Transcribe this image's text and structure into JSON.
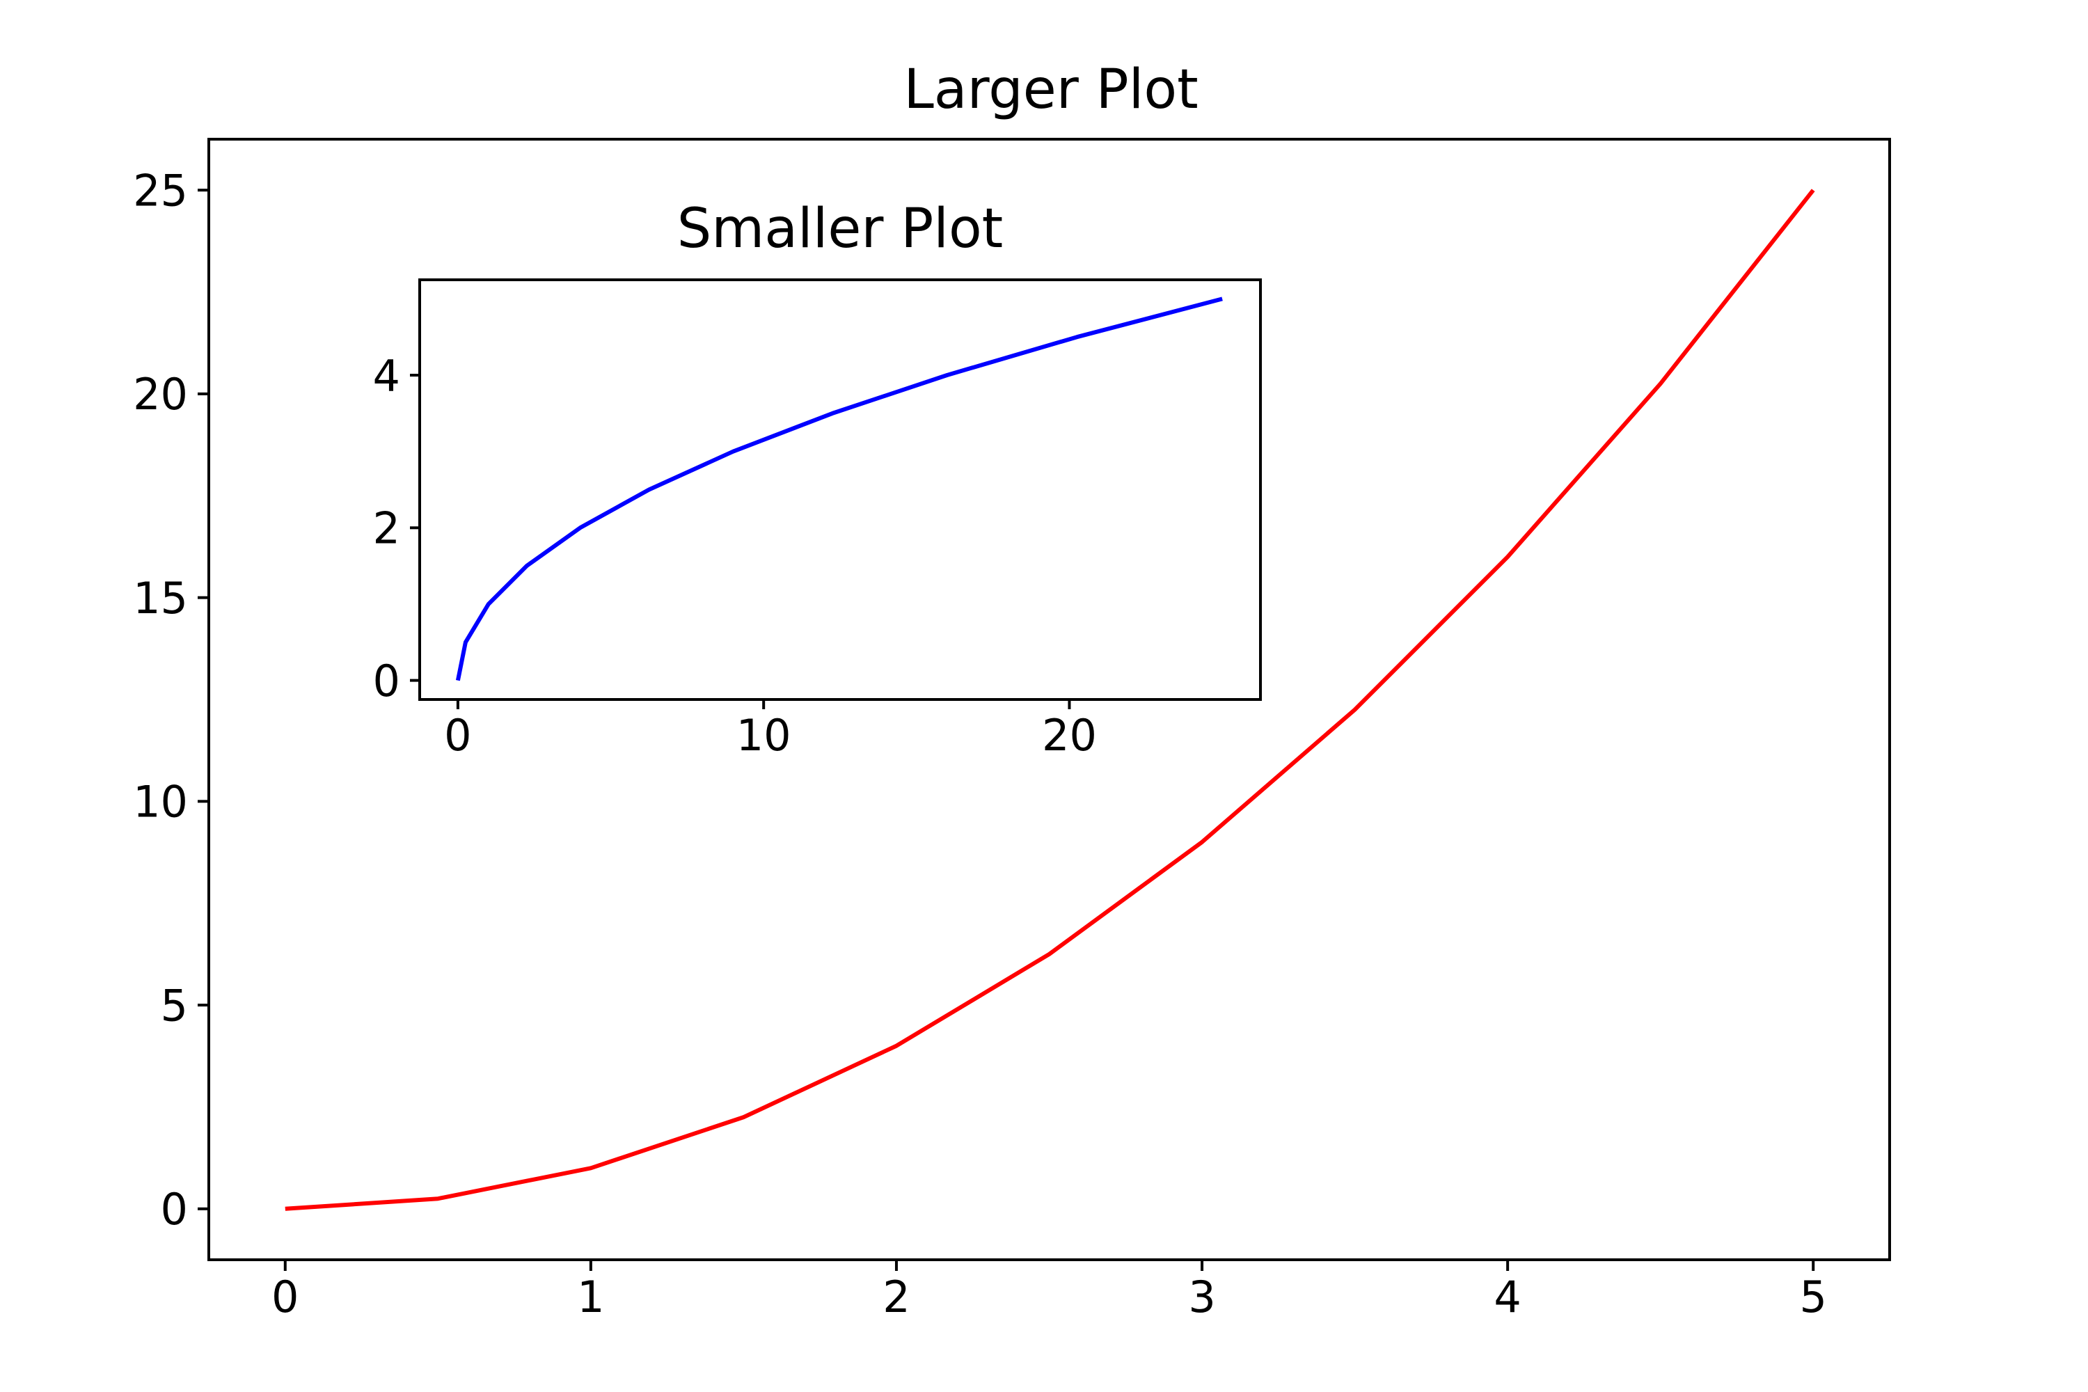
{
  "chart_data": [
    {
      "type": "line",
      "title": "Larger Plot",
      "xlabel": "",
      "ylabel": "",
      "xlim": [
        -0.25,
        5.25
      ],
      "ylim": [
        -1.25,
        26.25
      ],
      "xticks": [
        0,
        1,
        2,
        3,
        4,
        5
      ],
      "yticks": [
        0,
        5,
        10,
        15,
        20,
        25
      ],
      "grid": false,
      "series": [
        {
          "color": "#ff0000",
          "x": [
            0,
            0.5,
            1,
            1.5,
            2,
            2.5,
            3,
            3.5,
            4,
            4.5,
            5
          ],
          "y": [
            0,
            0.25,
            1,
            2.25,
            4,
            6.25,
            9,
            12.25,
            16,
            20.25,
            25
          ]
        }
      ]
    },
    {
      "type": "line",
      "title": "Smaller Plot",
      "xlabel": "",
      "ylabel": "",
      "xlim": [
        -1.25,
        26.25
      ],
      "ylim": [
        -0.25,
        5.25
      ],
      "xticks": [
        0,
        10,
        20
      ],
      "yticks": [
        0,
        2,
        4
      ],
      "grid": false,
      "series": [
        {
          "color": "#0000ff",
          "x": [
            0,
            0.25,
            1,
            2.25,
            4,
            6.25,
            9,
            12.25,
            16,
            20.25,
            25
          ],
          "y": [
            0,
            0.5,
            1,
            1.5,
            2,
            2.5,
            3,
            3.5,
            4,
            4.5,
            5
          ]
        }
      ]
    }
  ]
}
